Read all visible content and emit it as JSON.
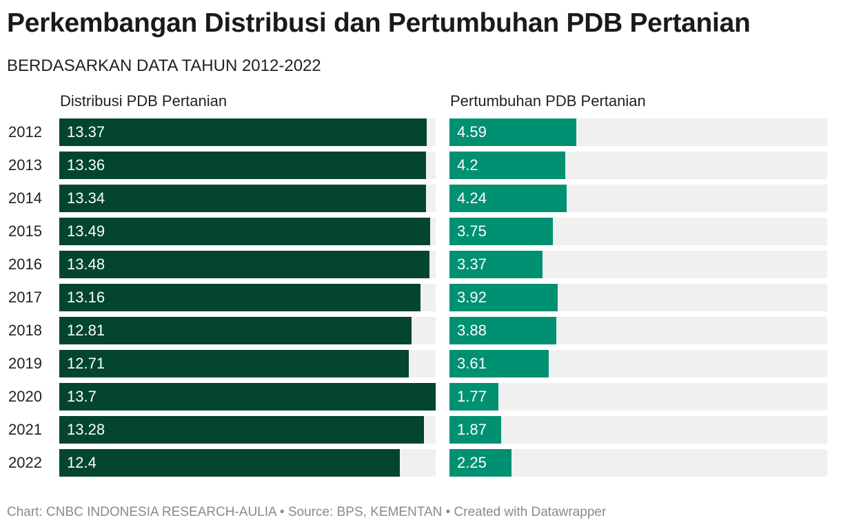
{
  "title": "Perkembangan Distribusi dan Pertumbuhan PDB Pertanian",
  "subtitle": "BERDASARKAN DATA TAHUN 2012-2022",
  "footer": {
    "text": "Chart: CNBC INDONESIA RESEARCH-AULIA • Source: BPS, KEMENTAN • Created with Datawrapper"
  },
  "colors": {
    "distribusi": "#03452e",
    "pertumbuhan": "#009072",
    "track": "#f0f0f0"
  },
  "chart_data": {
    "type": "bar",
    "orientation": "horizontal",
    "categories": [
      "2012",
      "2013",
      "2014",
      "2015",
      "2016",
      "2017",
      "2018",
      "2019",
      "2020",
      "2021",
      "2022"
    ],
    "series": [
      {
        "name": "Distribusi PDB Pertanian",
        "values": [
          13.37,
          13.36,
          13.34,
          13.49,
          13.48,
          13.16,
          12.81,
          12.71,
          13.7,
          13.28,
          12.4
        ],
        "labels": [
          "13.37",
          "13.36",
          "13.34",
          "13.49",
          "13.48",
          "13.16",
          "12.81",
          "12.71",
          "13.7",
          "13.28",
          "12.4"
        ],
        "xlim": [
          0,
          13.7
        ]
      },
      {
        "name": "Pertumbuhan PDB Pertanian",
        "values": [
          4.59,
          4.2,
          4.24,
          3.75,
          3.37,
          3.92,
          3.88,
          3.61,
          1.77,
          1.87,
          2.25
        ],
        "labels": [
          "4.59",
          "4.2",
          "4.24",
          "3.75",
          "3.37",
          "3.92",
          "3.88",
          "3.61",
          "1.77",
          "1.87",
          "2.25"
        ],
        "xlim": [
          0,
          13.7
        ]
      }
    ],
    "grid": false,
    "legend": "none"
  }
}
